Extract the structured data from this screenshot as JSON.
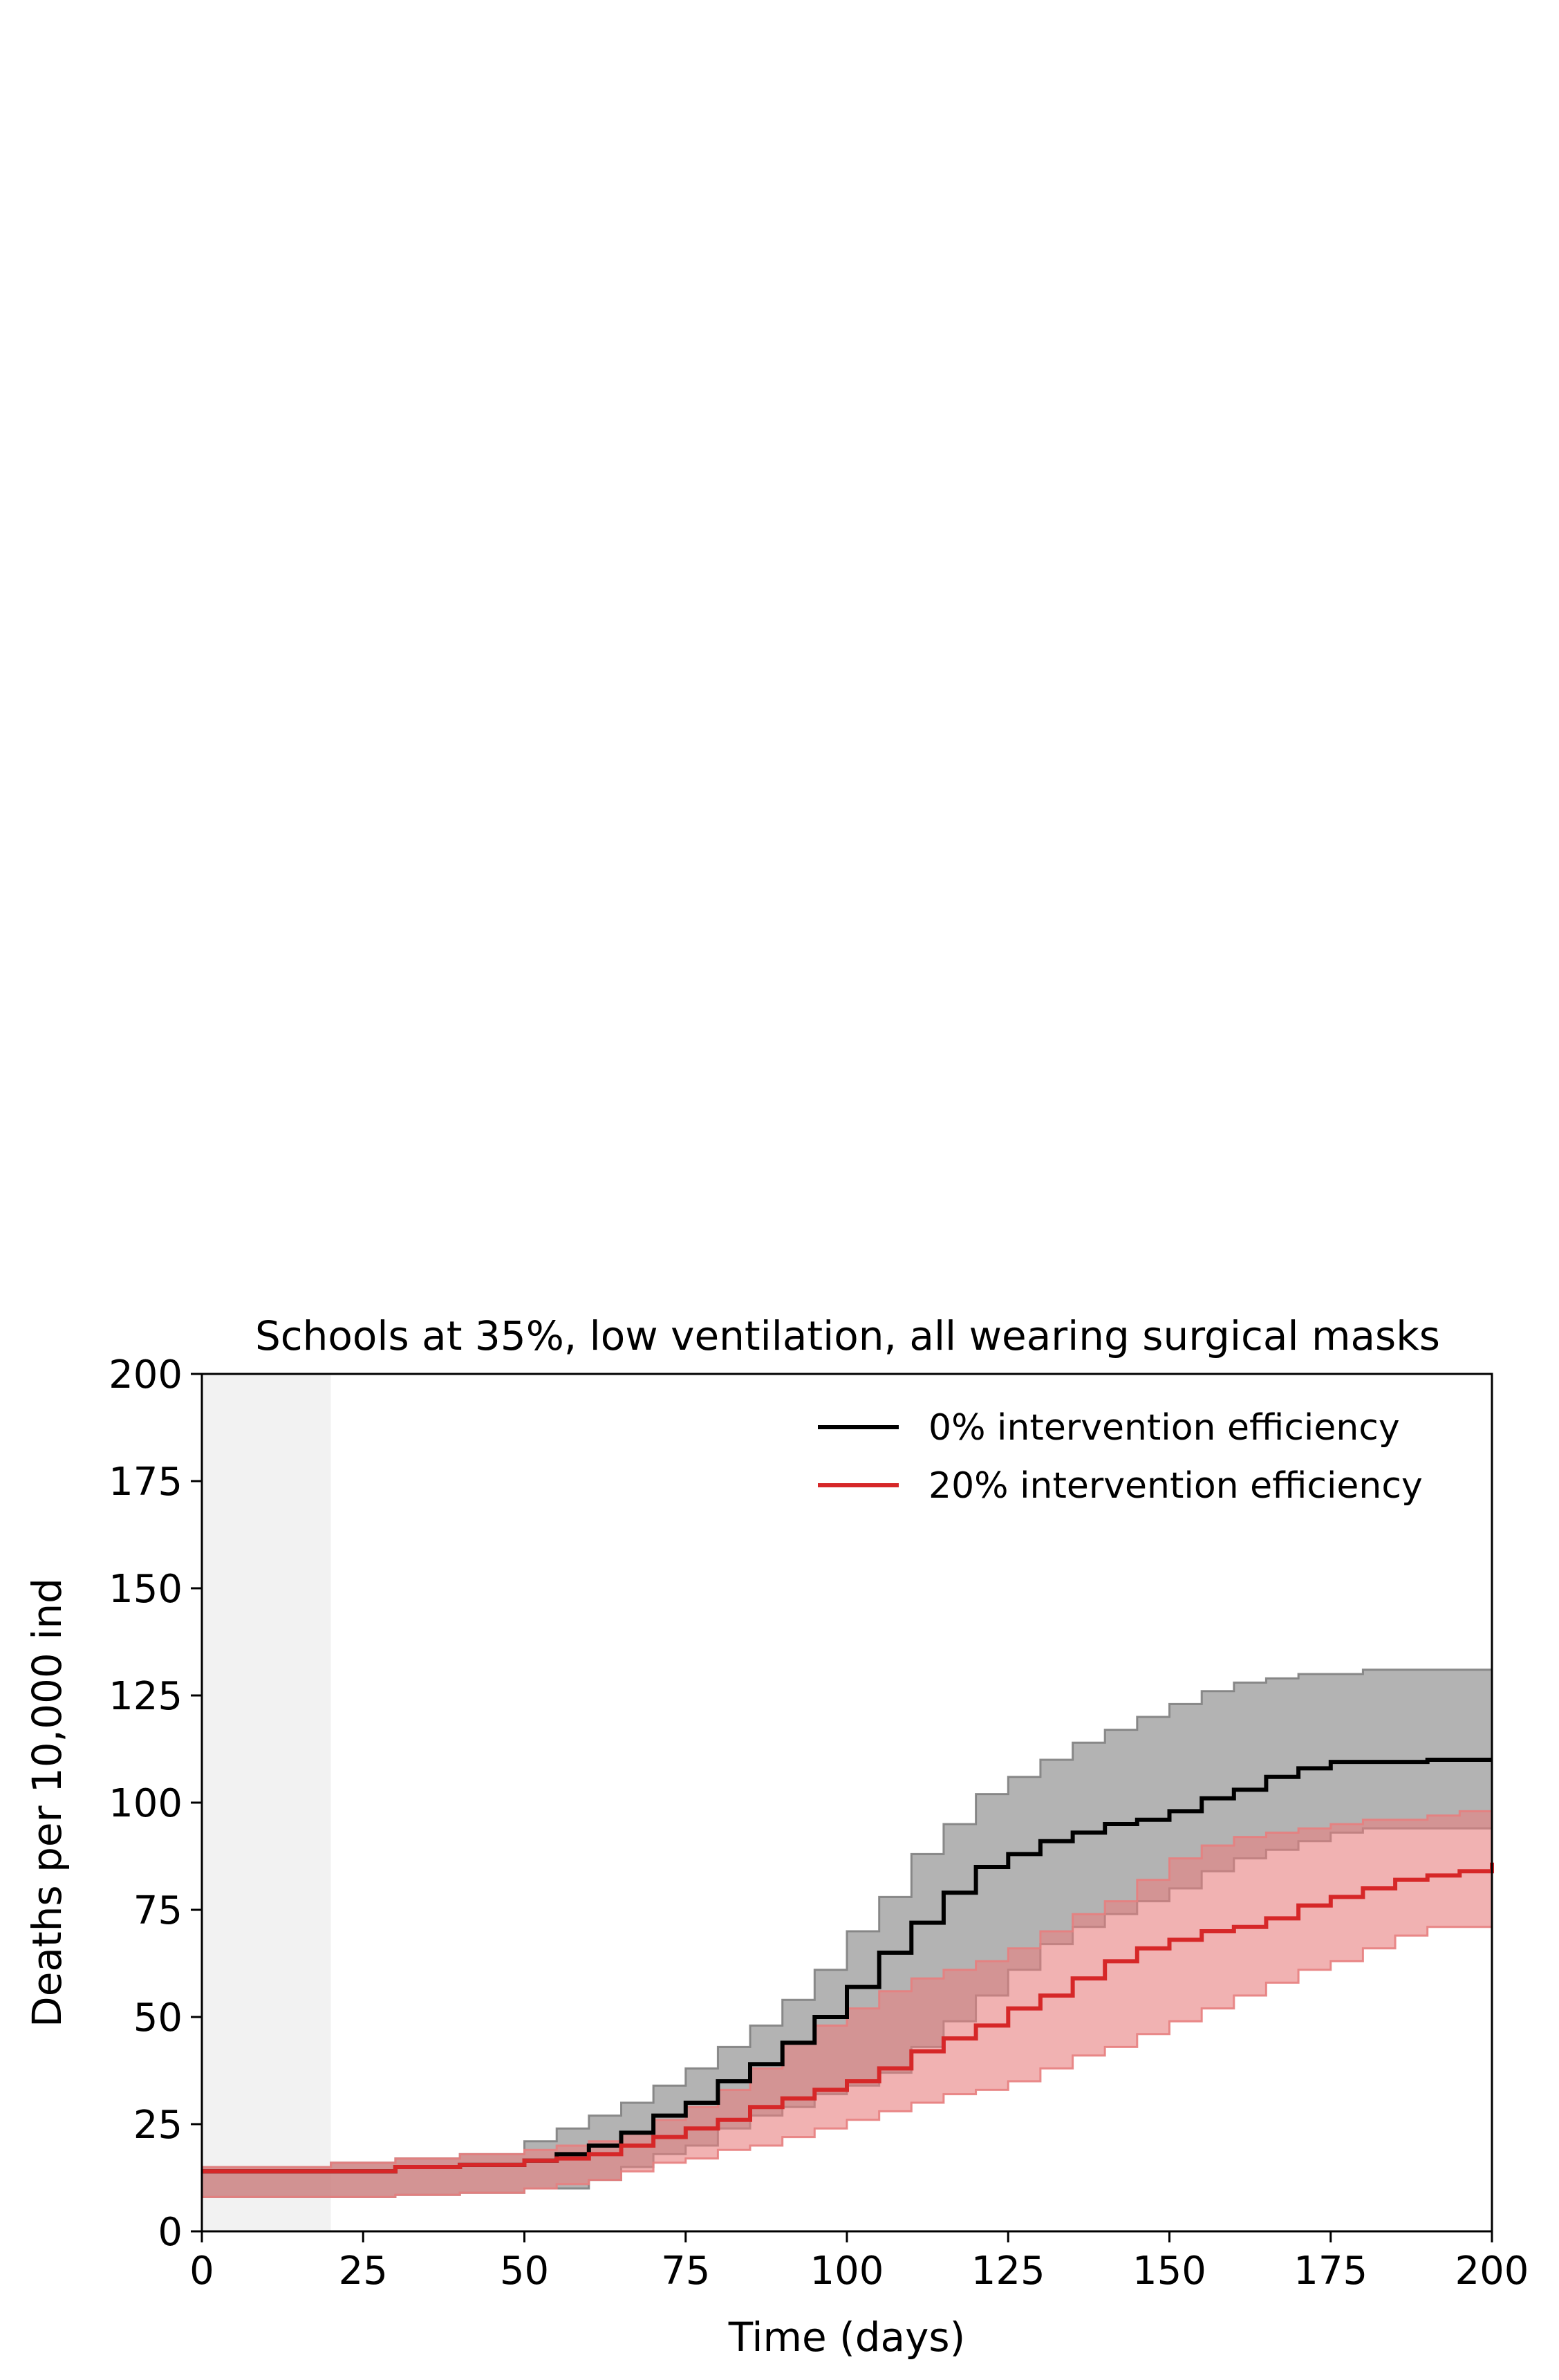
{
  "chart_data": {
    "type": "line",
    "title": "Schools at 35%, low ventilation, all wearing surgical masks",
    "xlabel": "Time (days)",
    "ylabel": "Deaths per 10,000 ind",
    "xlim": [
      0,
      200
    ],
    "ylim": [
      0,
      200
    ],
    "xticks": [
      "0",
      "25",
      "50",
      "75",
      "100",
      "125",
      "150",
      "175",
      "200"
    ],
    "yticks": [
      "0",
      "25",
      "50",
      "75",
      "100",
      "125",
      "150",
      "175",
      "200"
    ],
    "grid": false,
    "legend_position": "top-right",
    "shaded_region": {
      "x_start": 0,
      "x_end": 20,
      "color": "#f2f2f2"
    },
    "series": [
      {
        "name": "0% intervention efficiency",
        "color": "#000000",
        "band_color": "#808080",
        "x": [
          0,
          20,
          30,
          40,
          50,
          55,
          60,
          65,
          70,
          75,
          80,
          85,
          90,
          95,
          100,
          105,
          110,
          115,
          120,
          125,
          130,
          135,
          140,
          145,
          150,
          155,
          160,
          165,
          170,
          175,
          180,
          185,
          190,
          195,
          200
        ],
        "y": [
          14,
          14,
          15,
          15.5,
          16.5,
          18,
          20,
          23,
          27,
          30,
          35,
          39,
          44,
          50,
          57,
          65,
          72,
          79,
          85,
          88,
          91,
          93,
          95,
          96,
          98,
          101,
          103,
          106,
          108,
          109.5,
          109.5,
          109.5,
          110,
          110,
          110
        ],
        "lower": [
          8,
          8,
          8.5,
          9,
          10,
          10,
          12,
          15,
          18,
          20,
          24,
          27,
          29,
          32,
          34,
          37,
          43,
          49,
          55,
          61,
          67,
          71,
          74,
          77,
          80,
          84,
          87,
          89,
          91,
          93,
          94,
          94,
          94,
          94,
          94
        ],
        "upper": [
          15,
          16,
          17,
          18,
          21,
          24,
          27,
          30,
          34,
          38,
          43,
          48,
          54,
          61,
          70,
          78,
          88,
          95,
          102,
          106,
          110,
          114,
          117,
          120,
          123,
          126,
          128,
          129,
          130,
          130,
          131,
          131,
          131,
          131,
          131
        ]
      },
      {
        "name": "20% intervention efficiency",
        "color": "#d62728",
        "band_color": "#e77e7e",
        "x": [
          0,
          20,
          30,
          40,
          50,
          55,
          60,
          65,
          70,
          75,
          80,
          85,
          90,
          95,
          100,
          105,
          110,
          115,
          120,
          125,
          130,
          135,
          140,
          145,
          150,
          155,
          160,
          165,
          170,
          175,
          180,
          185,
          190,
          195,
          200
        ],
        "y": [
          14,
          14,
          15,
          15.5,
          16.5,
          17,
          18,
          20,
          22,
          24,
          26,
          29,
          31,
          33,
          35,
          38,
          42,
          45,
          48,
          52,
          55,
          59,
          63,
          66,
          68,
          70,
          71,
          73,
          76,
          78,
          80,
          82,
          83,
          84,
          86
        ],
        "lower": [
          8,
          8,
          8.5,
          9,
          10,
          11,
          12,
          14,
          16,
          17,
          19,
          20,
          22,
          24,
          26,
          28,
          30,
          32,
          33,
          35,
          38,
          41,
          43,
          46,
          49,
          52,
          55,
          58,
          61,
          63,
          66,
          69,
          71,
          71,
          74
        ],
        "upper": [
          15,
          16,
          17,
          18,
          19,
          20,
          21,
          23,
          26,
          29,
          33,
          38,
          44,
          48,
          52,
          56,
          59,
          61,
          63,
          66,
          70,
          74,
          77,
          82,
          87,
          90,
          92,
          93,
          94,
          95,
          96,
          96,
          97,
          98,
          99
        ]
      }
    ]
  }
}
